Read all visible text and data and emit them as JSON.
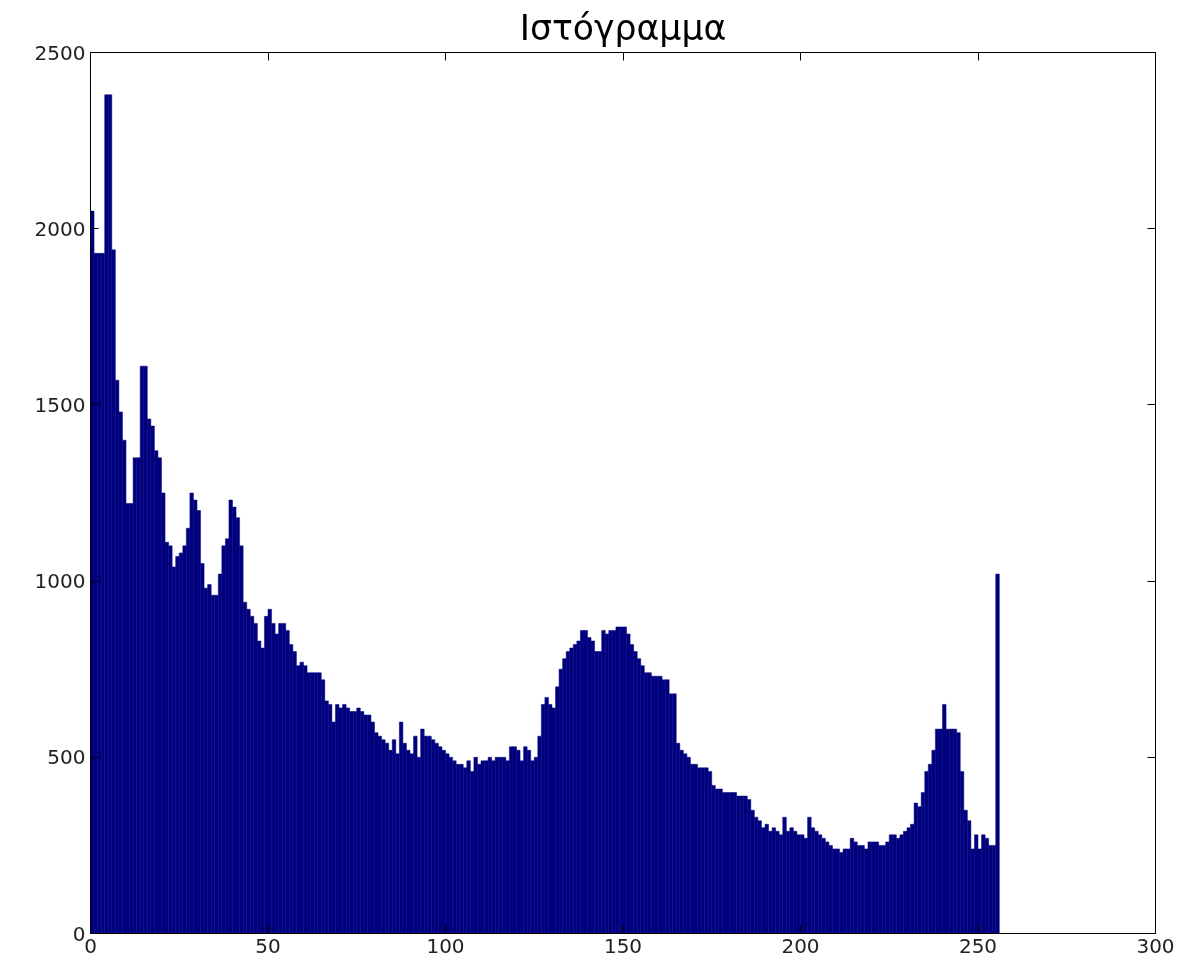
{
  "chart_data": {
    "type": "histogram",
    "title": "Ιστόγραμμα",
    "bins": [
      0,
      1,
      2,
      3,
      4,
      5,
      6,
      7,
      8,
      9,
      10,
      11,
      12,
      13,
      14,
      15,
      16,
      17,
      18,
      19,
      20,
      21,
      22,
      23,
      24,
      25,
      26,
      27,
      28,
      29,
      30,
      31,
      32,
      33,
      34,
      35,
      36,
      37,
      38,
      39,
      40,
      41,
      42,
      43,
      44,
      45,
      46,
      47,
      48,
      49,
      50,
      51,
      52,
      53,
      54,
      55,
      56,
      57,
      58,
      59,
      60,
      61,
      62,
      63,
      64,
      65,
      66,
      67,
      68,
      69,
      70,
      71,
      72,
      73,
      74,
      75,
      76,
      77,
      78,
      79,
      80,
      81,
      82,
      83,
      84,
      85,
      86,
      87,
      88,
      89,
      90,
      91,
      92,
      93,
      94,
      95,
      96,
      97,
      98,
      99,
      100,
      101,
      102,
      103,
      104,
      105,
      106,
      107,
      108,
      109,
      110,
      111,
      112,
      113,
      114,
      115,
      116,
      117,
      118,
      119,
      120,
      121,
      122,
      123,
      124,
      125,
      126,
      127,
      128,
      129,
      130,
      131,
      132,
      133,
      134,
      135,
      136,
      137,
      138,
      139,
      140,
      141,
      142,
      143,
      144,
      145,
      146,
      147,
      148,
      149,
      150,
      151,
      152,
      153,
      154,
      155,
      156,
      157,
      158,
      159,
      160,
      161,
      162,
      163,
      164,
      165,
      166,
      167,
      168,
      169,
      170,
      171,
      172,
      173,
      174,
      175,
      176,
      177,
      178,
      179,
      180,
      181,
      182,
      183,
      184,
      185,
      186,
      187,
      188,
      189,
      190,
      191,
      192,
      193,
      194,
      195,
      196,
      197,
      198,
      199,
      200,
      201,
      202,
      203,
      204,
      205,
      206,
      207,
      208,
      209,
      210,
      211,
      212,
      213,
      214,
      215,
      216,
      217,
      218,
      219,
      220,
      221,
      222,
      223,
      224,
      225,
      226,
      227,
      228,
      229,
      230,
      231,
      232,
      233,
      234,
      235,
      236,
      237,
      238,
      239,
      240,
      241,
      242,
      243,
      244,
      245,
      246,
      247,
      248,
      249,
      250,
      251,
      252,
      253,
      254,
      255,
      256
    ],
    "values": [
      2050,
      1930,
      1930,
      1930,
      2380,
      2380,
      1940,
      1570,
      1480,
      1400,
      1220,
      1220,
      1350,
      1350,
      1610,
      1610,
      1460,
      1440,
      1370,
      1350,
      1250,
      1110,
      1100,
      1040,
      1070,
      1080,
      1100,
      1150,
      1250,
      1230,
      1200,
      1050,
      980,
      990,
      960,
      960,
      1020,
      1100,
      1120,
      1230,
      1210,
      1180,
      1100,
      940,
      920,
      900,
      880,
      830,
      810,
      900,
      920,
      880,
      850,
      880,
      880,
      860,
      820,
      800,
      760,
      770,
      760,
      740,
      740,
      740,
      740,
      720,
      660,
      650,
      600,
      650,
      640,
      650,
      640,
      630,
      630,
      640,
      630,
      620,
      620,
      600,
      570,
      560,
      550,
      540,
      520,
      550,
      510,
      600,
      540,
      520,
      510,
      560,
      500,
      580,
      560,
      560,
      550,
      540,
      530,
      520,
      510,
      500,
      490,
      480,
      480,
      470,
      490,
      460,
      500,
      480,
      490,
      490,
      500,
      490,
      500,
      500,
      500,
      490,
      530,
      530,
      520,
      490,
      530,
      520,
      490,
      500,
      560,
      650,
      670,
      650,
      640,
      700,
      750,
      780,
      800,
      810,
      820,
      830,
      860,
      860,
      840,
      830,
      800,
      800,
      860,
      850,
      860,
      860,
      870,
      870,
      870,
      850,
      820,
      800,
      780,
      760,
      740,
      740,
      730,
      730,
      730,
      720,
      720,
      680,
      680,
      540,
      520,
      510,
      500,
      480,
      480,
      470,
      470,
      470,
      460,
      420,
      410,
      410,
      400,
      400,
      400,
      400,
      390,
      390,
      390,
      380,
      350,
      330,
      320,
      300,
      310,
      290,
      300,
      290,
      280,
      330,
      290,
      300,
      290,
      280,
      280,
      270,
      330,
      300,
      290,
      280,
      270,
      260,
      250,
      240,
      240,
      230,
      240,
      240,
      270,
      260,
      250,
      250,
      240,
      260,
      260,
      260,
      250,
      250,
      260,
      280,
      280,
      270,
      280,
      290,
      300,
      310,
      370,
      360,
      400,
      460,
      480,
      520,
      580,
      580,
      650,
      580,
      580,
      580,
      570,
      460,
      350,
      320,
      240,
      280,
      240,
      280,
      270,
      250,
      250,
      1020
    ],
    "color": "#00007f",
    "xlim": [
      0,
      300
    ],
    "xticks": [
      0,
      50,
      100,
      150,
      200,
      250,
      300
    ],
    "ylim": [
      0,
      2500
    ],
    "yticks": [
      0,
      500,
      1000,
      1500,
      2000,
      2500
    ],
    "grid": false
  }
}
